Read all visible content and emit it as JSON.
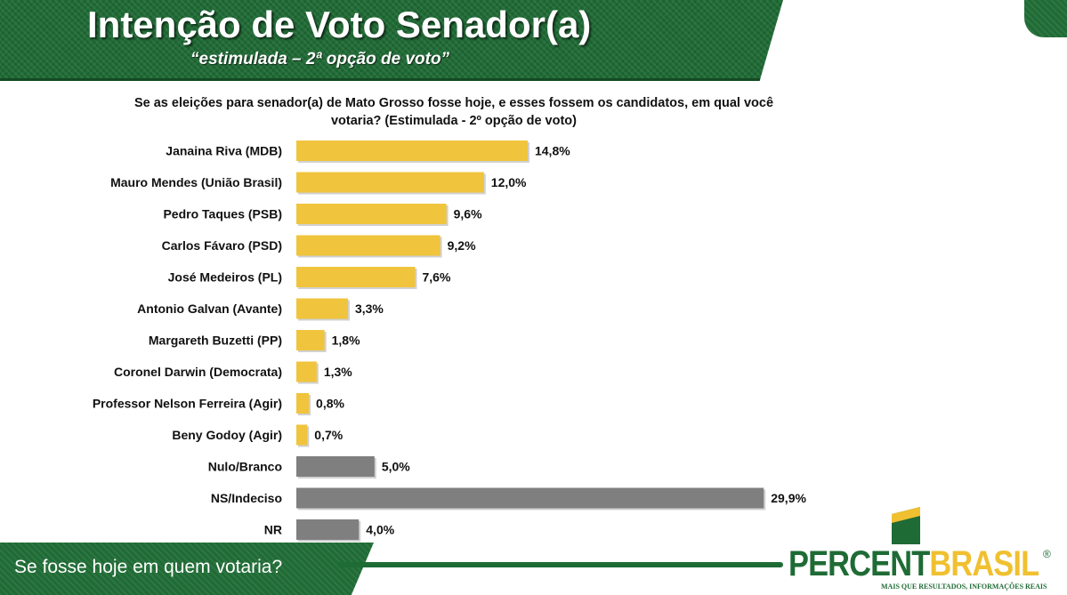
{
  "header": {
    "title": "Intenção de Voto Senador(a)",
    "subtitle": "“estimulada – 2ª opção de voto”"
  },
  "footer": {
    "text": "Se fosse hoje em quem votaria?"
  },
  "logo": {
    "part1": "PERCENT",
    "part2": "BRASIL",
    "registered": "®",
    "tagline": "MAIS QUE RESULTADOS, INFORMAÇÕES REAIS"
  },
  "colors": {
    "green": "#1f6b35",
    "candidate_bar": "#f0c43c",
    "other_bar": "#7f7f7f"
  },
  "chart_data": {
    "type": "bar",
    "orientation": "horizontal",
    "title": "Se as eleições para senador(a) de Mato Grosso fosse hoje, e esses fossem os candidatos, em qual você votaria? (Estimulada - 2º opção de voto)",
    "categories": [
      "Janaina Riva (MDB)",
      "Mauro Mendes (União Brasil)",
      "Pedro Taques (PSB)",
      "Carlos Fávaro (PSD)",
      "José Medeiros (PL)",
      "Antonio Galvan (Avante)",
      "Margareth Buzetti (PP)",
      "Coronel Darwin (Democrata)",
      "Professor Nelson Ferreira (Agir)",
      "Beny Godoy (Agir)",
      "Nulo/Branco",
      "NS/Indeciso",
      "NR"
    ],
    "values": [
      14.8,
      12.0,
      9.6,
      9.2,
      7.6,
      3.3,
      1.8,
      1.3,
      0.8,
      0.7,
      5.0,
      29.9,
      4.0
    ],
    "value_labels": [
      "14,8%",
      "12,0%",
      "9,6%",
      "9,2%",
      "7,6%",
      "3,3%",
      "1,8%",
      "1,3%",
      "0,8%",
      "0,7%",
      "5,0%",
      "29,9%",
      "4,0%"
    ],
    "bar_kind": [
      "candidate",
      "candidate",
      "candidate",
      "candidate",
      "candidate",
      "candidate",
      "candidate",
      "candidate",
      "candidate",
      "candidate",
      "other",
      "other",
      "other"
    ],
    "xlim": [
      0,
      30
    ],
    "grid": false,
    "legend": "none"
  }
}
